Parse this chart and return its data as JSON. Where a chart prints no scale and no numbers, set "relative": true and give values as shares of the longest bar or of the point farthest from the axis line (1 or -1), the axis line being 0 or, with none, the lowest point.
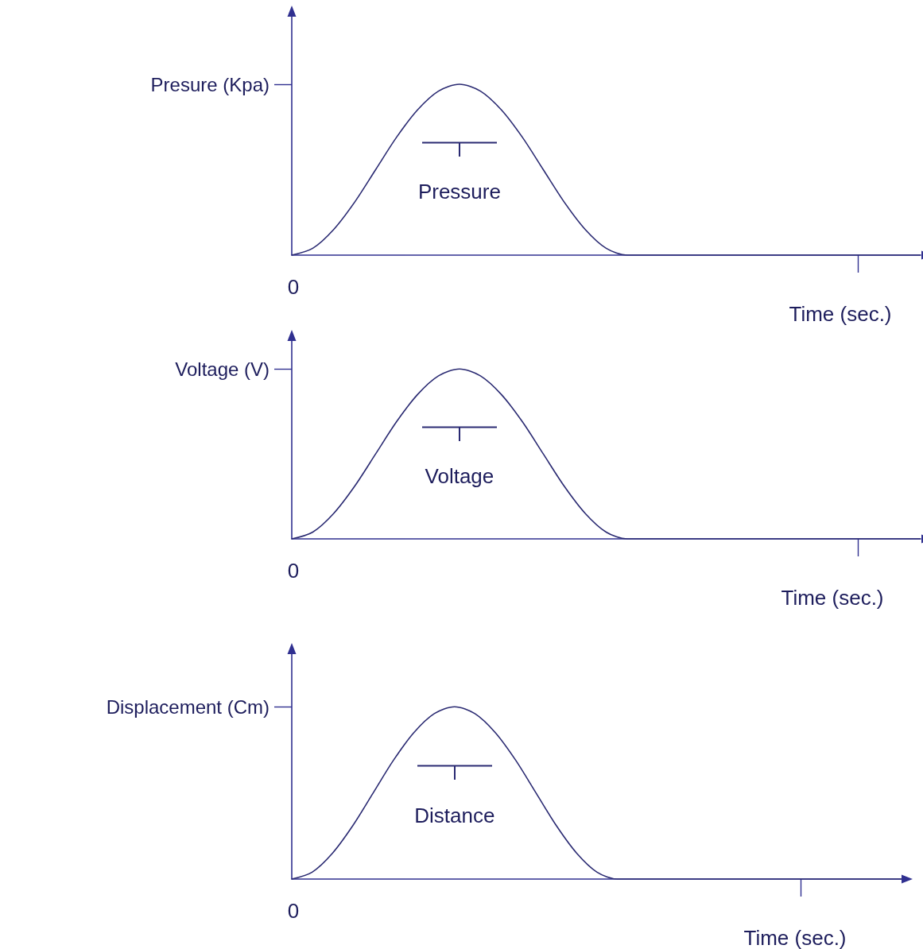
{
  "chart_data": [
    {
      "type": "line",
      "relative": true,
      "marker": "none",
      "color": "#2a2a72",
      "ylabel": "Presure (Kpa)",
      "xlabel": "Time (sec.)",
      "annotations": [
        "Pressure",
        "0"
      ],
      "categories": [
        null,
        null,
        null,
        null,
        null,
        null,
        null,
        null,
        null,
        null,
        null,
        null,
        null,
        null,
        null,
        null,
        null,
        null,
        null,
        null,
        null,
        null,
        null,
        null,
        null,
        null,
        null,
        null,
        null,
        null,
        null
      ],
      "values": [
        0,
        0.04,
        0.15,
        0.31,
        0.5,
        0.69,
        0.85,
        0.96,
        1,
        0.96,
        0.85,
        0.69,
        0.5,
        0.31,
        0.15,
        0.04,
        0,
        0,
        0,
        0,
        0,
        0,
        0,
        0,
        0,
        0,
        0,
        0,
        0,
        0,
        0
      ]
    },
    {
      "type": "line",
      "relative": true,
      "marker": "none",
      "color": "#2a2a72",
      "ylabel": "Voltage (V)",
      "xlabel": "Time (sec.)",
      "annotations": [
        "Voltage",
        "0"
      ],
      "categories": [
        null,
        null,
        null,
        null,
        null,
        null,
        null,
        null,
        null,
        null,
        null,
        null,
        null,
        null,
        null,
        null,
        null,
        null,
        null,
        null,
        null,
        null,
        null,
        null,
        null,
        null,
        null,
        null,
        null,
        null,
        null
      ],
      "values": [
        0,
        0.04,
        0.15,
        0.31,
        0.5,
        0.69,
        0.85,
        0.96,
        1,
        0.96,
        0.85,
        0.69,
        0.5,
        0.31,
        0.15,
        0.04,
        0,
        0,
        0,
        0,
        0,
        0,
        0,
        0,
        0,
        0,
        0,
        0,
        0,
        0,
        0
      ]
    },
    {
      "type": "line",
      "relative": true,
      "marker": "none",
      "color": "#2a2a72",
      "ylabel": "Displacement (Cm)",
      "xlabel": "Time (sec.)",
      "annotations": [
        "Distance",
        "0"
      ],
      "categories": [
        null,
        null,
        null,
        null,
        null,
        null,
        null,
        null,
        null,
        null,
        null,
        null,
        null,
        null,
        null,
        null,
        null,
        null,
        null,
        null,
        null,
        null,
        null,
        null,
        null,
        null,
        null,
        null,
        null,
        null,
        null
      ],
      "values": [
        0,
        0.04,
        0.15,
        0.31,
        0.5,
        0.69,
        0.85,
        0.96,
        1,
        0.96,
        0.85,
        0.69,
        0.5,
        0.31,
        0.15,
        0.04,
        0,
        0,
        0,
        0,
        0,
        0,
        0,
        0,
        0,
        0,
        0,
        0,
        0,
        0,
        0
      ]
    }
  ]
}
